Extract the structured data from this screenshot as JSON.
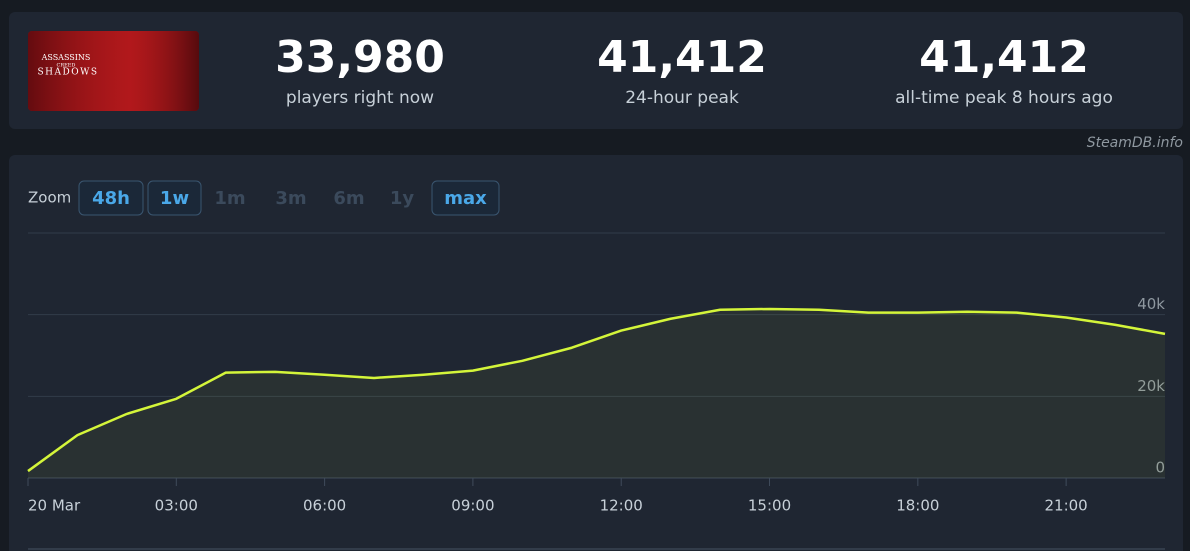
{
  "header": {
    "logo_lines": [
      "ASSASSINS",
      "CREED",
      "SHADOWS"
    ],
    "stats": [
      {
        "value": "33,980",
        "label": "players right now"
      },
      {
        "value": "41,412",
        "label": "24-hour peak"
      },
      {
        "value": "41,412",
        "label": "all-time peak 8 hours ago"
      }
    ],
    "watermark": "SteamDB.info"
  },
  "zoom": {
    "label": "Zoom",
    "buttons": [
      {
        "text": "48h",
        "active": true
      },
      {
        "text": "1w",
        "active": true
      },
      {
        "text": "1m",
        "active": false
      },
      {
        "text": "3m",
        "active": false
      },
      {
        "text": "6m",
        "active": false
      },
      {
        "text": "1y",
        "active": false
      },
      {
        "text": "max",
        "active": true
      }
    ]
  },
  "chart_data": {
    "type": "line",
    "color": "#d4f53a",
    "x": [
      0,
      1,
      2,
      3,
      4,
      5,
      6,
      7,
      8,
      9,
      10,
      11,
      12,
      13,
      14,
      15,
      16,
      17,
      18,
      19,
      20,
      21,
      22,
      23
    ],
    "values": [
      1700,
      10500,
      15700,
      19400,
      25800,
      26000,
      25300,
      24500,
      25300,
      26300,
      28700,
      31900,
      36100,
      39000,
      41200,
      41400,
      41200,
      40500,
      40500,
      40700,
      40500,
      39300,
      37500,
      35300
    ],
    "xlim": [
      0,
      23
    ],
    "xticks": [
      {
        "value": 0,
        "label": "20 Mar"
      },
      {
        "value": 3,
        "label": "03:00"
      },
      {
        "value": 6,
        "label": "06:00"
      },
      {
        "value": 9,
        "label": "09:00"
      },
      {
        "value": 12,
        "label": "12:00"
      },
      {
        "value": 15,
        "label": "15:00"
      },
      {
        "value": 18,
        "label": "18:00"
      },
      {
        "value": 21,
        "label": "21:00"
      }
    ],
    "ylim": [
      0,
      60000
    ],
    "yticks": [
      0,
      {
        "value": 20000,
        "label": "20k"
      },
      {
        "value": 40000,
        "label": "40k"
      }
    ],
    "grid": true
  }
}
